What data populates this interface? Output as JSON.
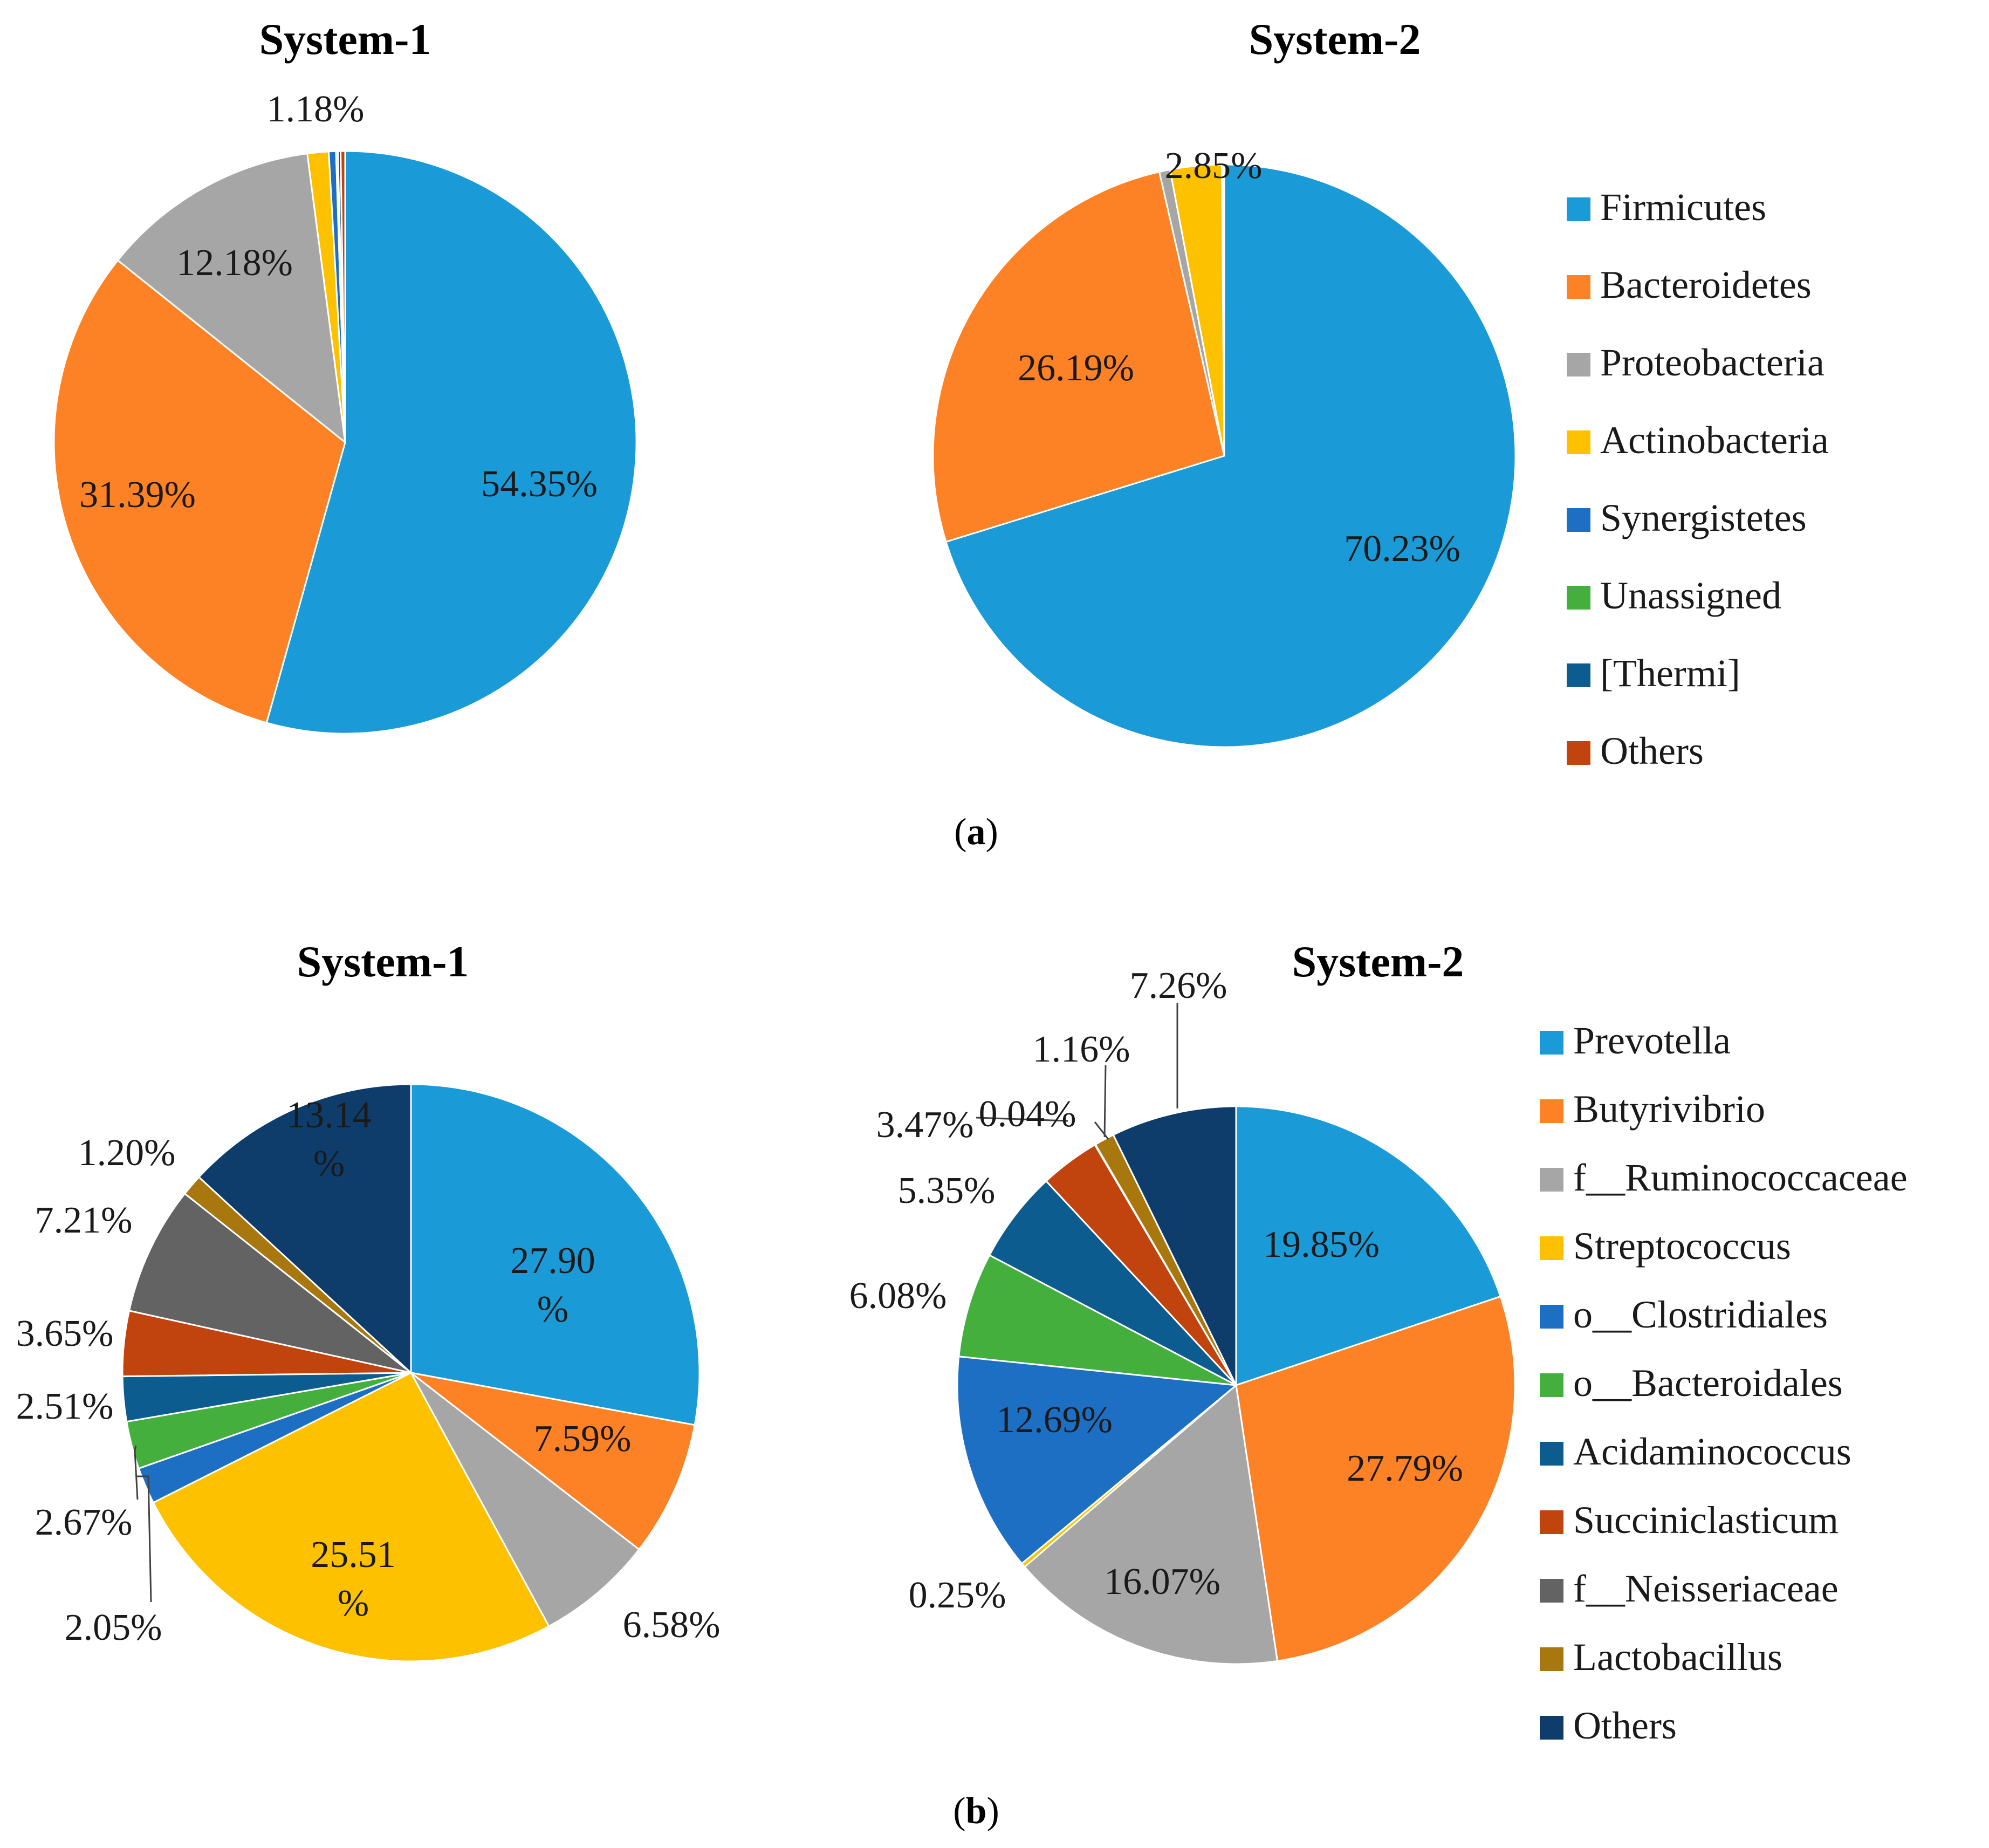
{
  "panels": [
    {
      "id": "a",
      "label": "a"
    },
    {
      "id": "b",
      "label": "b"
    }
  ],
  "chart_data": [
    {
      "type": "pie",
      "panel": "a",
      "title": "System-1",
      "categories": [
        "Firmicutes",
        "Bacteroidetes",
        "Proteobacteria",
        "Actinobacteria",
        "Synergistetes",
        "Unassigned",
        "[Thermi]",
        "Others"
      ],
      "values": [
        54.35,
        31.39,
        12.18,
        1.18,
        0.4,
        0.1,
        0.15,
        0.25
      ],
      "data_labels": [
        "54.35%",
        "31.39%",
        "12.18%",
        "1.18%",
        "",
        "",
        "",
        ""
      ]
    },
    {
      "type": "pie",
      "panel": "a",
      "title": "System-2",
      "categories": [
        "Firmicutes",
        "Bacteroidetes",
        "Proteobacteria",
        "Actinobacteria",
        "Synergistetes",
        "Unassigned",
        "[Thermi]",
        "Others"
      ],
      "values": [
        70.23,
        26.19,
        0.6,
        2.85,
        0.03,
        0.03,
        0.03,
        0.04
      ],
      "data_labels": [
        "70.23%",
        "26.19%",
        "",
        "2.85%",
        "",
        "",
        "",
        ""
      ],
      "legend": {
        "position": "right",
        "entries": [
          "Firmicutes",
          "Bacteroidetes",
          "Proteobacteria",
          "Actinobacteria",
          "Synergistetes",
          "Unassigned",
          "[Thermi]",
          "Others"
        ]
      }
    },
    {
      "type": "pie",
      "panel": "b",
      "title": "System-1",
      "categories": [
        "Prevotella",
        "Butyrivibrio",
        "f__Ruminococcaceae",
        "Streptococcus",
        "o__Clostridiales",
        "o__Bacteroidales",
        "Acidaminococcus",
        "Succiniclasticum",
        "f__Neisseriaceae",
        "Lactobacillus",
        "Others"
      ],
      "values": [
        27.9,
        7.59,
        6.58,
        25.51,
        2.05,
        2.67,
        2.51,
        3.65,
        7.21,
        1.2,
        13.14
      ],
      "data_labels": [
        [
          "27.90",
          "%"
        ],
        [
          "7.59%"
        ],
        [
          "6.58%"
        ],
        [
          "25.51",
          "%"
        ],
        [
          "2.05%"
        ],
        [
          "2.67%"
        ],
        [
          "2.51%"
        ],
        [
          "3.65%"
        ],
        [
          "7.21%"
        ],
        [
          "1.20%"
        ],
        [
          "13.14",
          "%"
        ]
      ]
    },
    {
      "type": "pie",
      "panel": "b",
      "title": "System-2",
      "categories": [
        "Prevotella",
        "Butyrivibrio",
        "f__Ruminococcaceae",
        "Streptococcus",
        "o__Clostridiales",
        "o__Bacteroidales",
        "Acidaminococcus",
        "Succiniclasticum",
        "f__Neisseriaceae",
        "Lactobacillus",
        "Others"
      ],
      "values": [
        19.85,
        27.79,
        16.07,
        0.25,
        12.69,
        6.08,
        5.35,
        3.47,
        0.04,
        1.16,
        7.26
      ],
      "data_labels": [
        "19.85%",
        "27.79%",
        "16.07%",
        "0.25%",
        "12.69%",
        "6.08%",
        "5.35%",
        "3.47%",
        "0.04%",
        "1.16%",
        "7.26%"
      ],
      "legend": {
        "position": "right",
        "entries": [
          "Prevotella",
          "Butyrivibrio",
          "f__Ruminococcaceae",
          "Streptococcus",
          "o__Clostridiales",
          "o__Bacteroidales",
          "Acidaminococcus",
          "Succiniclasticum",
          "f__Neisseriaceae",
          "Lactobacillus",
          "Others"
        ]
      }
    }
  ],
  "colors": {
    "phylum": [
      "#1A9AD6",
      "#FD8125",
      "#A6A6A6",
      "#FDC100",
      "#1D6FC4",
      "#44AF3D",
      "#0C5C8F",
      "#C1440E"
    ],
    "genus": [
      "#1A9AD6",
      "#FD8125",
      "#A6A6A6",
      "#FDC100",
      "#1D6FC4",
      "#44AF3D",
      "#0C5C8F",
      "#C1440E",
      "#636363",
      "#A8770D",
      "#0E3D6B"
    ]
  }
}
